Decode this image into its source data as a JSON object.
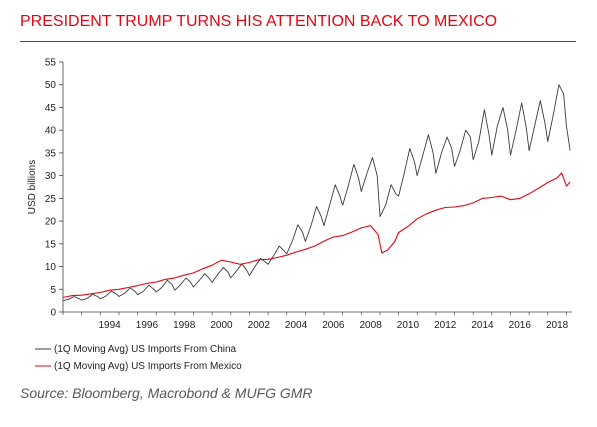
{
  "header": {
    "title": "PRESIDENT TRUMP TURNS HIS ATTENTION BACK TO MEXICO"
  },
  "footer": {
    "source": "Source: Bloomberg, Macrobond & MUFG GMR"
  },
  "colors": {
    "accent": "#e30613",
    "china": "#3c3c3c",
    "mexico": "#e30613",
    "rule": "#e30613"
  },
  "chart_data": {
    "type": "line",
    "title": "",
    "xlabel": "",
    "ylabel": "USD billions",
    "xlim": [
      1992.0,
      2019.3
    ],
    "ylim": [
      0,
      55
    ],
    "xticks": [
      1994,
      1996,
      1998,
      2000,
      2002,
      2004,
      2006,
      2008,
      2010,
      2012,
      2014,
      2016,
      2018
    ],
    "yticks": [
      0,
      5,
      10,
      15,
      20,
      25,
      30,
      35,
      40,
      45,
      50,
      55
    ],
    "grid": false,
    "legend": "bottom-left",
    "series": [
      {
        "name": "(1Q Moving Avg) US Imports From China",
        "x": [
          1992.0,
          1992.3,
          1992.6,
          1992.85,
          1993.0,
          1993.3,
          1993.6,
          1993.85,
          1994.0,
          1994.3,
          1994.6,
          1994.85,
          1995.0,
          1995.3,
          1995.6,
          1995.85,
          1996.0,
          1996.3,
          1996.6,
          1996.85,
          1997.0,
          1997.3,
          1997.6,
          1997.85,
          1998.0,
          1998.3,
          1998.6,
          1998.85,
          1999.0,
          1999.3,
          1999.6,
          1999.85,
          2000.0,
          2000.3,
          2000.6,
          2000.85,
          2001.0,
          2001.3,
          2001.6,
          2001.85,
          2002.0,
          2002.3,
          2002.6,
          2002.85,
          2003.0,
          2003.3,
          2003.6,
          2003.85,
          2004.0,
          2004.3,
          2004.6,
          2004.85,
          2005.0,
          2005.3,
          2005.6,
          2005.85,
          2006.0,
          2006.3,
          2006.6,
          2006.85,
          2007.0,
          2007.3,
          2007.6,
          2007.85,
          2008.0,
          2008.3,
          2008.6,
          2008.85,
          2009.0,
          2009.3,
          2009.6,
          2009.85,
          2010.0,
          2010.3,
          2010.6,
          2010.85,
          2011.0,
          2011.3,
          2011.6,
          2011.85,
          2012.0,
          2012.3,
          2012.6,
          2012.85,
          2013.0,
          2013.3,
          2013.6,
          2013.85,
          2014.0,
          2014.3,
          2014.6,
          2014.85,
          2015.0,
          2015.3,
          2015.6,
          2015.85,
          2016.0,
          2016.3,
          2016.6,
          2016.85,
          2017.0,
          2017.3,
          2017.6,
          2017.85,
          2018.0,
          2018.3,
          2018.6,
          2018.85,
          2019.0,
          2019.2
        ],
        "values": [
          2.5,
          2.8,
          3.4,
          3.0,
          2.6,
          3.0,
          3.9,
          3.4,
          2.9,
          3.5,
          4.6,
          4.0,
          3.4,
          4.1,
          5.3,
          4.6,
          3.8,
          4.5,
          5.9,
          5.1,
          4.4,
          5.4,
          7.0,
          6.0,
          4.8,
          6.0,
          7.5,
          6.5,
          5.5,
          6.9,
          8.4,
          7.4,
          6.5,
          8.3,
          9.8,
          8.8,
          7.5,
          9.0,
          10.6,
          9.2,
          8.0,
          10.0,
          11.8,
          11.0,
          10.5,
          12.4,
          14.5,
          13.5,
          12.8,
          15.6,
          19.2,
          17.5,
          15.5,
          19.0,
          23.2,
          21.0,
          19.0,
          23.5,
          28.0,
          25.5,
          23.5,
          27.8,
          32.5,
          29.5,
          26.5,
          30.5,
          34.0,
          30.0,
          21.0,
          23.5,
          28.0,
          26.0,
          25.5,
          30.5,
          36.0,
          33.0,
          30.0,
          34.5,
          39.0,
          35.0,
          30.5,
          35.0,
          38.5,
          36.0,
          32.0,
          35.5,
          40.0,
          38.5,
          33.5,
          37.5,
          44.5,
          39.0,
          34.5,
          41.0,
          45.0,
          40.0,
          34.5,
          40.0,
          46.0,
          40.5,
          35.5,
          41.0,
          46.5,
          41.5,
          37.5,
          43.5,
          50.0,
          48.0,
          41.0,
          35.5
        ]
      },
      {
        "name": "(1Q Moving Avg) US Imports From Mexico",
        "x": [
          1992.0,
          1992.5,
          1993.0,
          1993.5,
          1994.0,
          1994.5,
          1995.0,
          1995.5,
          1996.0,
          1996.5,
          1997.0,
          1997.5,
          1998.0,
          1998.5,
          1999.0,
          1999.5,
          2000.0,
          2000.5,
          2001.0,
          2001.5,
          2002.0,
          2002.5,
          2003.0,
          2003.5,
          2004.0,
          2004.5,
          2005.0,
          2005.5,
          2006.0,
          2006.5,
          2007.0,
          2007.5,
          2008.0,
          2008.5,
          2008.9,
          2009.1,
          2009.4,
          2009.8,
          2010.0,
          2010.5,
          2011.0,
          2011.5,
          2012.0,
          2012.5,
          2013.0,
          2013.5,
          2014.0,
          2014.5,
          2015.0,
          2015.5,
          2016.0,
          2016.5,
          2017.0,
          2017.5,
          2018.0,
          2018.5,
          2018.75,
          2019.0,
          2019.2
        ],
        "values": [
          3.2,
          3.6,
          3.7,
          4.0,
          4.3,
          4.8,
          5.0,
          5.4,
          5.8,
          6.3,
          6.6,
          7.2,
          7.5,
          8.1,
          8.6,
          9.5,
          10.3,
          11.4,
          11.0,
          10.5,
          10.9,
          11.5,
          11.6,
          12.0,
          12.5,
          13.2,
          13.8,
          14.5,
          15.6,
          16.5,
          16.8,
          17.6,
          18.5,
          19.0,
          17.0,
          13.0,
          13.6,
          15.5,
          17.5,
          18.8,
          20.5,
          21.6,
          22.4,
          23.0,
          23.1,
          23.4,
          24.0,
          25.0,
          25.2,
          25.5,
          24.7,
          25.0,
          26.0,
          27.2,
          28.5,
          29.5,
          30.6,
          27.7,
          28.6
        ]
      }
    ]
  }
}
